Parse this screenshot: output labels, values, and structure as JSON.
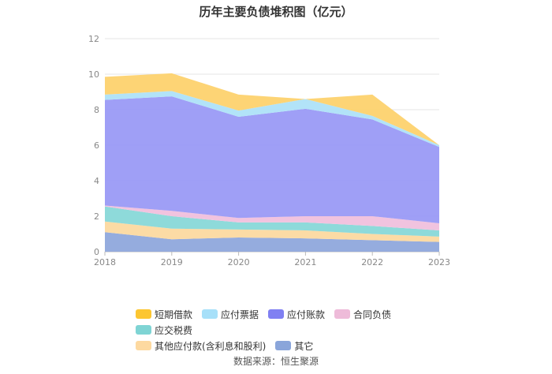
{
  "chart_data": {
    "type": "area",
    "stacked": true,
    "title": "历年主要负债堆积图（亿元）",
    "x": [
      "2018",
      "2019",
      "2020",
      "2021",
      "2022",
      "2023"
    ],
    "ylim": [
      0,
      12
    ],
    "yticks": [
      0,
      2,
      4,
      6,
      8,
      10,
      12
    ],
    "grid": true,
    "legend_position": "bottom",
    "series": [
      {
        "name": "其它",
        "color": "#8fa8dc",
        "values": [
          1.1,
          0.7,
          0.8,
          0.75,
          0.65,
          0.55
        ]
      },
      {
        "name": "其他应付款(含利息和股利)",
        "color": "#fcd9a0",
        "values": [
          0.6,
          0.6,
          0.45,
          0.45,
          0.35,
          0.3
        ]
      },
      {
        "name": "应交税费",
        "color": "#88d8d8",
        "values": [
          0.85,
          0.7,
          0.4,
          0.45,
          0.45,
          0.35
        ]
      },
      {
        "name": "合同负债",
        "color": "#f0c0dd",
        "values": [
          0.05,
          0.3,
          0.25,
          0.35,
          0.55,
          0.4
        ]
      },
      {
        "name": "应付账款",
        "color": "#9a9af5",
        "values": [
          5.95,
          6.45,
          5.7,
          6.05,
          5.45,
          4.3
        ]
      },
      {
        "name": "应付票据",
        "color": "#aee2f8",
        "values": [
          0.3,
          0.3,
          0.35,
          0.55,
          0.2,
          0.1
        ]
      },
      {
        "name": "短期借款",
        "color": "#fdd26e",
        "values": [
          1.0,
          1.0,
          0.9,
          0.0,
          1.2,
          0.0
        ]
      }
    ]
  },
  "legend": {
    "row1": [
      {
        "label": "短期借款",
        "color": "#fcc631"
      },
      {
        "label": "应付票据",
        "color": "#a7e0f9"
      },
      {
        "label": "应付账款",
        "color": "#8080f2"
      },
      {
        "label": "合同负债",
        "color": "#eebbd9"
      },
      {
        "label": "应交税费",
        "color": "#7fd4d4"
      }
    ],
    "row2": [
      {
        "label": "其他应付款(含利息和股利)",
        "color": "#fdd9a0"
      },
      {
        "label": "其它",
        "color": "#8aa5da"
      }
    ]
  },
  "source": "数据来源：恒生聚源"
}
